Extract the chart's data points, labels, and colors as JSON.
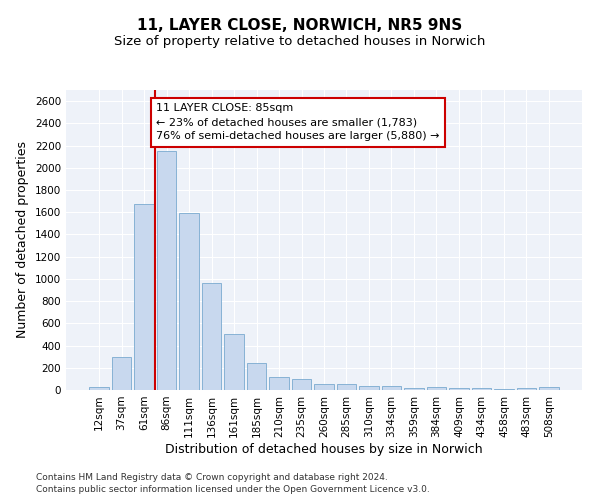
{
  "title1": "11, LAYER CLOSE, NORWICH, NR5 9NS",
  "title2": "Size of property relative to detached houses in Norwich",
  "xlabel": "Distribution of detached houses by size in Norwich",
  "ylabel": "Number of detached properties",
  "categories": [
    "12sqm",
    "37sqm",
    "61sqm",
    "86sqm",
    "111sqm",
    "136sqm",
    "161sqm",
    "185sqm",
    "210sqm",
    "235sqm",
    "260sqm",
    "285sqm",
    "310sqm",
    "334sqm",
    "359sqm",
    "384sqm",
    "409sqm",
    "434sqm",
    "458sqm",
    "483sqm",
    "508sqm"
  ],
  "values": [
    25,
    295,
    1670,
    2150,
    1590,
    960,
    500,
    245,
    120,
    100,
    50,
    50,
    35,
    35,
    20,
    30,
    20,
    20,
    5,
    20,
    25
  ],
  "bar_color": "#c8d8ee",
  "bar_edge_color": "#7aaad0",
  "vline_color": "#cc0000",
  "annotation_text": "11 LAYER CLOSE: 85sqm\n← 23% of detached houses are smaller (1,783)\n76% of semi-detached houses are larger (5,880) →",
  "annotation_box_color": "#cc0000",
  "ylim": [
    0,
    2700
  ],
  "yticks": [
    0,
    200,
    400,
    600,
    800,
    1000,
    1200,
    1400,
    1600,
    1800,
    2000,
    2200,
    2400,
    2600
  ],
  "footnote1": "Contains HM Land Registry data © Crown copyright and database right 2024.",
  "footnote2": "Contains public sector information licensed under the Open Government Licence v3.0.",
  "bg_color": "#eef2f9",
  "grid_color": "#ffffff",
  "title_fontsize": 11,
  "subtitle_fontsize": 9.5,
  "axis_label_fontsize": 9,
  "tick_fontsize": 7.5,
  "annotation_fontsize": 8,
  "footnote_fontsize": 6.5
}
